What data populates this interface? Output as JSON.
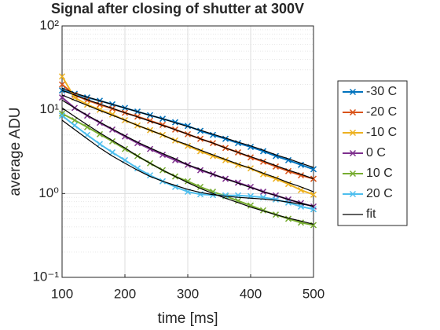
{
  "chart_data": {
    "type": "line",
    "title": "Signal after closing of shutter at 300V",
    "xlabel": "time [ms]",
    "ylabel": "average ADU",
    "x": [
      100,
      120,
      140,
      160,
      180,
      200,
      220,
      240,
      260,
      280,
      300,
      320,
      340,
      360,
      380,
      400,
      420,
      440,
      460,
      480,
      500
    ],
    "xlim": [
      100,
      500
    ],
    "xticks": [
      100,
      200,
      300,
      400,
      500
    ],
    "ylim": [
      0.1,
      100
    ],
    "yscale": "log",
    "yticks": [
      {
        "value": 0.1,
        "label": "10⁻¹"
      },
      {
        "value": 1,
        "label": "10⁰"
      },
      {
        "value": 10,
        "label": "10¹"
      },
      {
        "value": 100,
        "label": "10²"
      }
    ],
    "grid": true,
    "minor_grid": true,
    "legend": "outside-right",
    "series": [
      {
        "name": "-30 C",
        "color": "#0072bd",
        "values": [
          17,
          15.5,
          14,
          12.8,
          11.6,
          10.5,
          9.5,
          8.6,
          7.8,
          7.1,
          6.4,
          5.6,
          5.0,
          4.5,
          4.0,
          3.6,
          3.2,
          2.8,
          2.5,
          2.2,
          1.95
        ]
      },
      {
        "name": "-20 C",
        "color": "#d95319",
        "values": [
          20,
          15,
          13,
          11.5,
          10.3,
          9.2,
          8.3,
          7.4,
          6.6,
          5.8,
          5.1,
          4.5,
          4.0,
          3.5,
          3.1,
          2.7,
          2.4,
          2.1,
          1.85,
          1.65,
          1.5
        ]
      },
      {
        "name": "-10 C",
        "color": "#edb120",
        "values": [
          25,
          14,
          11.5,
          10,
          8.8,
          7.5,
          6.5,
          5.7,
          5,
          4.3,
          3.7,
          3.2,
          2.8,
          2.5,
          2.2,
          2.0,
          1.7,
          1.5,
          1.3,
          1.1,
          0.97
        ]
      },
      {
        "name": "0 C",
        "color": "#7e2f8e",
        "values": [
          14,
          10.5,
          8.5,
          7,
          5.8,
          4.8,
          4.0,
          3.4,
          2.9,
          2.5,
          2.2,
          1.9,
          1.7,
          1.5,
          1.35,
          1.2,
          1.05,
          0.95,
          0.85,
          0.77,
          0.7
        ]
      },
      {
        "name": "10 C",
        "color": "#77ac30",
        "values": [
          9,
          7.5,
          6.2,
          5.1,
          4.2,
          3.4,
          2.8,
          2.3,
          1.9,
          1.6,
          1.4,
          1.2,
          1.05,
          0.93,
          0.82,
          0.72,
          0.63,
          0.56,
          0.5,
          0.45,
          0.42
        ]
      },
      {
        "name": "20 C",
        "color": "#4dbeee",
        "values": [
          8.5,
          6.5,
          5.0,
          3.9,
          3.1,
          2.5,
          2.0,
          1.65,
          1.4,
          1.2,
          1.05,
          0.98,
          0.96,
          0.95,
          0.95,
          0.93,
          0.9,
          0.85,
          0.78,
          0.7,
          0.65
        ]
      }
    ],
    "fit": {
      "name": "fit",
      "color": "#000000",
      "values": [
        [
          18,
          15.8,
          14.2,
          12.8,
          11.6,
          10.5,
          9.5,
          8.6,
          7.8,
          7.0,
          6.3,
          5.7,
          5.1,
          4.6,
          4.1,
          3.7,
          3.3,
          2.9,
          2.6,
          2.3,
          2.05
        ],
        [
          17,
          15,
          13.2,
          11.7,
          10.4,
          9.2,
          8.2,
          7.3,
          6.5,
          5.8,
          5.1,
          4.5,
          4.0,
          3.5,
          3.1,
          2.75,
          2.45,
          2.15,
          1.9,
          1.7,
          1.5
        ],
        [
          15,
          13,
          11.3,
          9.8,
          8.6,
          7.5,
          6.5,
          5.7,
          5.0,
          4.3,
          3.8,
          3.3,
          2.9,
          2.55,
          2.25,
          2.0,
          1.75,
          1.55,
          1.35,
          1.2,
          1.05
        ],
        [
          13,
          10.5,
          8.6,
          7.1,
          5.9,
          4.9,
          4.1,
          3.5,
          3.0,
          2.6,
          2.2,
          1.95,
          1.7,
          1.5,
          1.33,
          1.18,
          1.05,
          0.95,
          0.85,
          0.77,
          0.7
        ],
        [
          10.5,
          8.3,
          6.6,
          5.3,
          4.3,
          3.5,
          2.8,
          2.3,
          1.9,
          1.6,
          1.35,
          1.15,
          1.0,
          0.88,
          0.78,
          0.69,
          0.62,
          0.56,
          0.51,
          0.47,
          0.43
        ],
        [
          7.5,
          5.8,
          4.5,
          3.5,
          2.8,
          2.3,
          1.9,
          1.6,
          1.4,
          1.25,
          1.12,
          1.03,
          0.97,
          0.93,
          0.9,
          0.88,
          0.86,
          0.83,
          0.79,
          0.75,
          0.71
        ]
      ]
    }
  }
}
